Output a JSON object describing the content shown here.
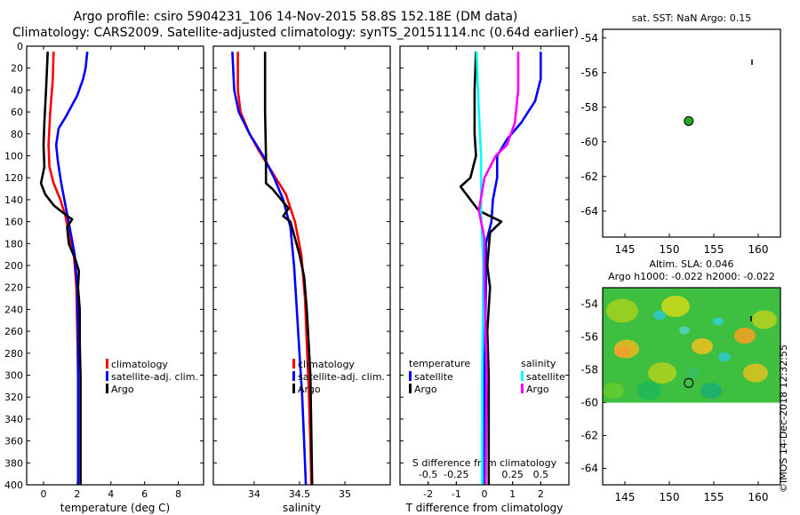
{
  "title_line1": "Argo profile: csiro 5904231_106 14-Nov-2015 58.8S 152.18E (DM data)",
  "title_line2": "Climatology: CARS2009. Satellite-adjusted climatology: synTS_20151114.nc (0.64d earlier)",
  "stamp": "©IMOS 14-Dec-2018 12:32:55",
  "colors": {
    "climatology": "#ff0000",
    "satellite": "#0000ff",
    "argo": "#000000",
    "sal_sat": "#00ffff",
    "sal_argo": "#ff00ff",
    "grid": "#000000"
  },
  "chart_data": [
    {
      "id": "temperature",
      "type": "line",
      "xlabel": "temperature (deg C)",
      "ylabel": "depth",
      "xlim": [
        -1,
        9.5
      ],
      "ylim": [
        400,
        0
      ],
      "xticks": [
        0,
        2,
        4,
        6,
        8
      ],
      "yticks": [
        0,
        20,
        40,
        60,
        80,
        100,
        120,
        140,
        160,
        180,
        200,
        220,
        240,
        260,
        280,
        300,
        320,
        340,
        360,
        380,
        400
      ],
      "legend": [
        "climatology",
        "satellite-adj. clim.",
        "Argo"
      ],
      "legend_position": "bottom-right",
      "series": [
        {
          "name": "climatology",
          "color_key": "climatology",
          "points": [
            [
              0.6,
              5
            ],
            [
              0.55,
              30
            ],
            [
              0.4,
              60
            ],
            [
              0.3,
              90
            ],
            [
              0.35,
              110
            ],
            [
              0.6,
              125
            ],
            [
              1.0,
              140
            ],
            [
              1.3,
              155
            ],
            [
              1.5,
              170
            ],
            [
              1.8,
              190
            ],
            [
              1.95,
              220
            ],
            [
              2.0,
              260
            ],
            [
              2.05,
              300
            ],
            [
              2.05,
              350
            ],
            [
              2.05,
              400
            ]
          ]
        },
        {
          "name": "satellite-adj. clim.",
          "color_key": "satellite",
          "points": [
            [
              2.6,
              5
            ],
            [
              2.5,
              20
            ],
            [
              2.35,
              30
            ],
            [
              2.0,
              45
            ],
            [
              1.3,
              65
            ],
            [
              0.9,
              75
            ],
            [
              0.75,
              90
            ],
            [
              0.85,
              105
            ],
            [
              1.05,
              125
            ],
            [
              1.3,
              145
            ],
            [
              1.55,
              165
            ],
            [
              1.85,
              190
            ],
            [
              2.0,
              220
            ],
            [
              2.05,
              260
            ],
            [
              2.05,
              300
            ],
            [
              2.05,
              350
            ],
            [
              2.05,
              400
            ]
          ]
        },
        {
          "name": "Argo",
          "color_key": "argo",
          "points": [
            [
              0.25,
              5
            ],
            [
              0.15,
              40
            ],
            [
              0.05,
              70
            ],
            [
              0.0,
              90
            ],
            [
              0.05,
              110
            ],
            [
              -0.15,
              125
            ],
            [
              0.1,
              135
            ],
            [
              0.6,
              145
            ],
            [
              1.0,
              150
            ],
            [
              1.7,
              158
            ],
            [
              1.4,
              165
            ],
            [
              1.5,
              180
            ],
            [
              1.9,
              195
            ],
            [
              2.1,
              205
            ],
            [
              2.05,
              220
            ],
            [
              2.15,
              240
            ],
            [
              2.15,
              270
            ],
            [
              2.2,
              300
            ],
            [
              2.2,
              340
            ],
            [
              2.2,
              400
            ]
          ]
        }
      ]
    },
    {
      "id": "salinity",
      "type": "line",
      "xlabel": "salinity",
      "ylabel": "depth",
      "xlim": [
        33.55,
        35.5
      ],
      "ylim": [
        400,
        0
      ],
      "xticks": [
        34,
        34.5,
        35
      ],
      "yticks": [
        0,
        20,
        40,
        60,
        80,
        100,
        120,
        140,
        160,
        180,
        200,
        220,
        240,
        260,
        280,
        300,
        320,
        340,
        360,
        380,
        400
      ],
      "legend": [
        "climatology",
        "satellite-adj. clim.",
        "Argo"
      ],
      "legend_position": "bottom-right",
      "series": [
        {
          "name": "climatology",
          "color_key": "climatology",
          "points": [
            [
              33.82,
              5
            ],
            [
              33.82,
              40
            ],
            [
              33.85,
              60
            ],
            [
              33.95,
              80
            ],
            [
              34.05,
              95
            ],
            [
              34.2,
              115
            ],
            [
              34.35,
              135
            ],
            [
              34.45,
              160
            ],
            [
              34.52,
              190
            ],
            [
              34.56,
              230
            ],
            [
              34.58,
              270
            ],
            [
              34.6,
              310
            ],
            [
              34.62,
              360
            ],
            [
              34.63,
              400
            ]
          ]
        },
        {
          "name": "satellite-adj. clim.",
          "color_key": "satellite",
          "points": [
            [
              33.76,
              5
            ],
            [
              33.78,
              40
            ],
            [
              33.83,
              60
            ],
            [
              33.95,
              80
            ],
            [
              34.1,
              100
            ],
            [
              34.22,
              120
            ],
            [
              34.32,
              140
            ],
            [
              34.4,
              165
            ],
            [
              34.44,
              200
            ],
            [
              34.47,
              240
            ],
            [
              34.5,
              280
            ],
            [
              34.53,
              320
            ],
            [
              34.55,
              360
            ],
            [
              34.57,
              400
            ]
          ]
        },
        {
          "name": "Argo",
          "color_key": "argo",
          "points": [
            [
              34.12,
              5
            ],
            [
              34.12,
              60
            ],
            [
              34.13,
              100
            ],
            [
              34.13,
              125
            ],
            [
              34.2,
              130
            ],
            [
              34.3,
              140
            ],
            [
              34.38,
              148
            ],
            [
              34.32,
              155
            ],
            [
              34.4,
              160
            ],
            [
              34.45,
              175
            ],
            [
              34.5,
              190
            ],
            [
              34.55,
              210
            ],
            [
              34.58,
              240
            ],
            [
              34.6,
              270
            ],
            [
              34.62,
              300
            ],
            [
              34.63,
              350
            ],
            [
              34.64,
              400
            ]
          ]
        }
      ]
    },
    {
      "id": "difference",
      "type": "line",
      "xlabel": "T difference from climatology",
      "x2label": "S difference from climatology",
      "ylabel": "depth",
      "xlim": [
        -3,
        3
      ],
      "x2lim": [
        -0.75,
        0.75
      ],
      "ylim": [
        400,
        0
      ],
      "xticks": [
        -2,
        -1,
        0,
        1,
        2
      ],
      "x2ticks": [
        -0.5,
        -0.25,
        0,
        0.25,
        0.5
      ],
      "x2ticklabels": [
        "-0.5",
        "-0.25",
        "0",
        "0.25",
        "0.5"
      ],
      "yticks": [
        0,
        20,
        40,
        60,
        80,
        100,
        120,
        140,
        160,
        180,
        200,
        220,
        240,
        260,
        280,
        300,
        320,
        340,
        360,
        380,
        400
      ],
      "legend_temperature_heading": "temperature",
      "legend_salinity_heading": "salinity",
      "legend_temperature": [
        "satellite",
        "Argo"
      ],
      "legend_salinity": [
        "satellite",
        "Argo"
      ],
      "legend_position": "bottom",
      "series": [
        {
          "name": "T satellite",
          "axis": "T",
          "color_key": "satellite",
          "points": [
            [
              2.0,
              5
            ],
            [
              2.0,
              30
            ],
            [
              1.8,
              50
            ],
            [
              1.3,
              70
            ],
            [
              0.8,
              85
            ],
            [
              0.45,
              100
            ],
            [
              0.45,
              120
            ],
            [
              0.3,
              140
            ],
            [
              0.25,
              160
            ],
            [
              0.05,
              180
            ],
            [
              0.05,
              220
            ],
            [
              0.0,
              300
            ],
            [
              0.0,
              400
            ]
          ]
        },
        {
          "name": "T Argo",
          "axis": "T",
          "color_key": "argo",
          "points": [
            [
              -0.3,
              5
            ],
            [
              -0.35,
              40
            ],
            [
              -0.35,
              80
            ],
            [
              -0.3,
              100
            ],
            [
              -0.5,
              120
            ],
            [
              -0.85,
              128
            ],
            [
              -0.5,
              140
            ],
            [
              -0.2,
              150
            ],
            [
              0.6,
              160
            ],
            [
              0.2,
              170
            ],
            [
              0.1,
              200
            ],
            [
              0.2,
              220
            ],
            [
              0.1,
              260
            ],
            [
              0.15,
              300
            ],
            [
              0.15,
              400
            ]
          ]
        },
        {
          "name": "S satellite",
          "axis": "S",
          "color_key": "sal_sat",
          "points": [
            [
              -0.07,
              5
            ],
            [
              -0.05,
              60
            ],
            [
              -0.03,
              100
            ],
            [
              -0.03,
              150
            ],
            [
              -0.01,
              200
            ],
            [
              -0.02,
              300
            ],
            [
              -0.02,
              400
            ]
          ]
        },
        {
          "name": "S Argo",
          "axis": "S",
          "color_key": "sal_argo",
          "points": [
            [
              0.3,
              5
            ],
            [
              0.3,
              40
            ],
            [
              0.27,
              70
            ],
            [
              0.2,
              90
            ],
            [
              0.1,
              100
            ],
            [
              0.0,
              120
            ],
            [
              -0.05,
              150
            ],
            [
              0.0,
              175
            ],
            [
              0.0,
              220
            ],
            [
              0.02,
              300
            ],
            [
              0.01,
              400
            ]
          ]
        }
      ]
    },
    {
      "id": "sst_map",
      "type": "scatter",
      "title": "sat. SST: NaN Argo: 0.15",
      "xlim": [
        142.5,
        162.5
      ],
      "ylim": [
        -65.5,
        -53.5
      ],
      "xticks": [
        145,
        150,
        155,
        160
      ],
      "yticks": [
        -54,
        -56,
        -58,
        -60,
        -62,
        -64
      ],
      "ytick_labels": [
        "-54",
        "-56",
        "-58",
        "-60",
        "-62",
        "-64"
      ],
      "float_position": [
        152.18,
        -58.8
      ],
      "marker_fill": "#22aa22"
    },
    {
      "id": "sla_map",
      "type": "heatmap",
      "title_line1": "Altim. SLA: 0.046",
      "title_line2": "Argo h1000: -0.022 h2000: -0.022",
      "xlim": [
        142.5,
        162.5
      ],
      "ylim": [
        -65,
        -53
      ],
      "data_ylim": [
        -60,
        -53
      ],
      "xticks": [
        145,
        150,
        155,
        160
      ],
      "yticks": [
        -54,
        -56,
        -58,
        -60,
        -62,
        -64
      ],
      "ytick_labels": [
        "-54",
        "-56",
        "-58",
        "-60",
        "-62",
        "-64"
      ],
      "float_position": [
        152.18,
        -58.8
      ]
    }
  ]
}
